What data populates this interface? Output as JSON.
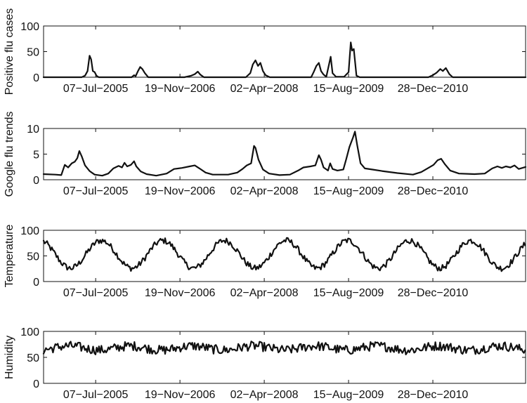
{
  "chart_data": [
    {
      "type": "line",
      "ylabel": "Positive flu cases",
      "ylim": [
        0,
        100
      ],
      "yticks": [
        0,
        50,
        100
      ],
      "xlim": [
        "2004-09-01",
        "2012-06-30"
      ],
      "xticks": [
        "2005-07-07",
        "2006-11-19",
        "2008-04-02",
        "2009-08-15",
        "2010-12-28"
      ],
      "xticklabels": [
        "07−Jul−2005",
        "19−Nov−2006",
        "02−Apr−2008",
        "15−Aug−2009",
        "28−Dec−2010"
      ],
      "grid": false,
      "series": [
        {
          "color": "#111111",
          "points": [
            [
              "2004-09-01",
              0
            ],
            [
              "2005-04-15",
              0
            ],
            [
              "2005-05-05",
              3
            ],
            [
              "2005-05-20",
              12
            ],
            [
              "2005-06-01",
              42
            ],
            [
              "2005-06-10",
              35
            ],
            [
              "2005-06-20",
              12
            ],
            [
              "2005-07-01",
              10
            ],
            [
              "2005-07-12",
              3
            ],
            [
              "2005-07-25",
              0
            ],
            [
              "2006-02-05",
              0
            ],
            [
              "2006-02-20",
              4
            ],
            [
              "2006-03-01",
              2
            ],
            [
              "2006-03-15",
              12
            ],
            [
              "2006-03-28",
              20
            ],
            [
              "2006-04-10",
              16
            ],
            [
              "2006-04-25",
              8
            ],
            [
              "2006-05-15",
              0
            ],
            [
              "2006-12-15",
              0
            ],
            [
              "2007-01-25",
              3
            ],
            [
              "2007-02-15",
              6
            ],
            [
              "2007-03-05",
              11
            ],
            [
              "2007-03-20",
              5
            ],
            [
              "2007-04-10",
              0
            ],
            [
              "2007-12-15",
              0
            ],
            [
              "2008-01-10",
              8
            ],
            [
              "2008-01-25",
              25
            ],
            [
              "2008-02-10",
              33
            ],
            [
              "2008-02-25",
              22
            ],
            [
              "2008-03-10",
              28
            ],
            [
              "2008-03-25",
              12
            ],
            [
              "2008-04-10",
              4
            ],
            [
              "2008-05-05",
              0
            ],
            [
              "2009-01-05",
              0
            ],
            [
              "2009-01-20",
              10
            ],
            [
              "2009-02-05",
              22
            ],
            [
              "2009-02-20",
              28
            ],
            [
              "2009-03-05",
              12
            ],
            [
              "2009-03-20",
              5
            ],
            [
              "2009-04-05",
              1
            ],
            [
              "2009-05-01",
              40
            ],
            [
              "2009-05-12",
              8
            ],
            [
              "2009-06-01",
              1
            ],
            [
              "2009-07-20",
              1
            ],
            [
              "2009-08-15",
              10
            ],
            [
              "2009-08-28",
              68
            ],
            [
              "2009-09-05",
              52
            ],
            [
              "2009-09-15",
              55
            ],
            [
              "2009-10-01",
              3
            ],
            [
              "2009-10-20",
              0
            ],
            [
              "2010-12-01",
              0
            ],
            [
              "2010-12-28",
              4
            ],
            [
              "2011-01-20",
              9
            ],
            [
              "2011-02-10",
              16
            ],
            [
              "2011-02-25",
              12
            ],
            [
              "2011-03-15",
              18
            ],
            [
              "2011-04-05",
              6
            ],
            [
              "2011-04-25",
              0
            ],
            [
              "2012-06-30",
              0
            ]
          ]
        }
      ]
    },
    {
      "type": "line",
      "ylabel": "Google flu trends",
      "ylim": [
        0,
        10
      ],
      "yticks": [
        0,
        5,
        10
      ],
      "xlim": [
        "2004-09-01",
        "2012-06-30"
      ],
      "xticks": [
        "2005-07-07",
        "2006-11-19",
        "2008-04-02",
        "2009-08-15",
        "2010-12-28"
      ],
      "xticklabels": [
        "07−Jul−2005",
        "19−Nov−2006",
        "02−Apr−2008",
        "15−Aug−2009",
        "28−Dec−2010"
      ],
      "grid": false,
      "series": [
        {
          "color": "#111111",
          "points": [
            [
              "2004-09-01",
              1.1
            ],
            [
              "2004-11-10",
              1.0
            ],
            [
              "2004-12-15",
              0.9
            ],
            [
              "2005-01-05",
              2.9
            ],
            [
              "2005-01-25",
              2.4
            ],
            [
              "2005-02-15",
              3.2
            ],
            [
              "2005-03-05",
              3.5
            ],
            [
              "2005-03-20",
              4.2
            ],
            [
              "2005-04-01",
              5.6
            ],
            [
              "2005-04-15",
              4.6
            ],
            [
              "2005-05-05",
              2.8
            ],
            [
              "2005-06-01",
              1.7
            ],
            [
              "2005-07-01",
              1.0
            ],
            [
              "2005-08-15",
              0.8
            ],
            [
              "2005-09-20",
              1.2
            ],
            [
              "2005-10-20",
              2.2
            ],
            [
              "2005-11-20",
              2.7
            ],
            [
              "2005-12-10",
              2.4
            ],
            [
              "2005-12-25",
              3.3
            ],
            [
              "2006-01-10",
              2.6
            ],
            [
              "2006-02-01",
              2.9
            ],
            [
              "2006-02-20",
              3.6
            ],
            [
              "2006-03-05",
              2.6
            ],
            [
              "2006-04-01",
              1.6
            ],
            [
              "2006-05-05",
              1.1
            ],
            [
              "2006-07-01",
              0.8
            ],
            [
              "2006-09-01",
              1.2
            ],
            [
              "2006-10-15",
              2.1
            ],
            [
              "2006-12-01",
              2.3
            ],
            [
              "2007-01-15",
              2.6
            ],
            [
              "2007-02-15",
              2.8
            ],
            [
              "2007-03-15",
              2.2
            ],
            [
              "2007-04-20",
              1.4
            ],
            [
              "2007-06-01",
              1.0
            ],
            [
              "2007-09-01",
              1.0
            ],
            [
              "2007-10-25",
              1.4
            ],
            [
              "2007-11-25",
              2.1
            ],
            [
              "2007-12-20",
              2.8
            ],
            [
              "2008-01-15",
              3.2
            ],
            [
              "2008-02-01",
              6.6
            ],
            [
              "2008-02-10",
              6.2
            ],
            [
              "2008-02-28",
              3.9
            ],
            [
              "2008-03-25",
              2.0
            ],
            [
              "2008-05-01",
              1.2
            ],
            [
              "2008-07-01",
              0.9
            ],
            [
              "2008-09-01",
              1.0
            ],
            [
              "2008-10-20",
              1.8
            ],
            [
              "2008-11-20",
              2.4
            ],
            [
              "2009-01-01",
              2.6
            ],
            [
              "2009-01-30",
              2.8
            ],
            [
              "2009-02-20",
              4.8
            ],
            [
              "2009-03-05",
              3.9
            ],
            [
              "2009-03-20",
              2.4
            ],
            [
              "2009-04-15",
              1.8
            ],
            [
              "2009-04-28",
              3.2
            ],
            [
              "2009-05-12",
              2.1
            ],
            [
              "2009-06-10",
              1.8
            ],
            [
              "2009-07-15",
              2.0
            ],
            [
              "2009-08-01",
              4.0
            ],
            [
              "2009-08-20",
              6.4
            ],
            [
              "2009-09-10",
              8.2
            ],
            [
              "2009-09-22",
              9.4
            ],
            [
              "2009-10-05",
              6.8
            ],
            [
              "2009-10-25",
              3.2
            ],
            [
              "2009-11-20",
              2.2
            ],
            [
              "2010-01-01",
              2.0
            ],
            [
              "2010-03-01",
              1.7
            ],
            [
              "2010-06-01",
              1.3
            ],
            [
              "2010-09-01",
              1.0
            ],
            [
              "2010-10-20",
              1.5
            ],
            [
              "2010-12-01",
              2.3
            ],
            [
              "2011-01-01",
              2.9
            ],
            [
              "2011-01-25",
              3.8
            ],
            [
              "2011-02-15",
              4.1
            ],
            [
              "2011-03-10",
              3.0
            ],
            [
              "2011-04-10",
              1.8
            ],
            [
              "2011-06-01",
              1.2
            ],
            [
              "2011-09-01",
              1.1
            ],
            [
              "2011-11-01",
              1.2
            ],
            [
              "2011-12-15",
              2.2
            ],
            [
              "2012-01-15",
              2.6
            ],
            [
              "2012-02-10",
              2.3
            ],
            [
              "2012-03-05",
              2.6
            ],
            [
              "2012-04-01",
              2.4
            ],
            [
              "2012-04-25",
              2.8
            ],
            [
              "2012-05-20",
              2.1
            ],
            [
              "2012-06-30",
              2.5
            ]
          ]
        }
      ]
    },
    {
      "type": "line",
      "ylabel": "Temperature",
      "ylim": [
        0,
        100
      ],
      "yticks": [
        0,
        50,
        100
      ],
      "xlim": [
        "2004-09-01",
        "2012-06-30"
      ],
      "xticks": [
        "2005-07-07",
        "2006-11-19",
        "2008-04-02",
        "2009-08-15",
        "2010-12-28"
      ],
      "xticklabels": [
        "07−Jul−2005",
        "19−Nov−2006",
        "02−Apr−2008",
        "15−Aug−2009",
        "28−Dec−2010"
      ],
      "grid": false,
      "series": [
        {
          "color": "#111111",
          "seasonal": {
            "start": "2004-09-01",
            "end": "2012-06-30",
            "step_days": 7,
            "mean": 53,
            "amplitude": 27,
            "peak_month": 7.3,
            "noise": 6
          }
        }
      ]
    },
    {
      "type": "line",
      "ylabel": "Humidity",
      "ylim": [
        0,
        100
      ],
      "yticks": [
        0,
        50,
        100
      ],
      "xlim": [
        "2004-09-01",
        "2012-06-30"
      ],
      "xticks": [
        "2005-07-07",
        "2006-11-19",
        "2008-04-02",
        "2009-08-15",
        "2010-12-28"
      ],
      "xticklabels": [
        "07−Jul−2005",
        "19−Nov−2006",
        "02−Apr−2008",
        "15−Aug−2009",
        "28−Dec−2010"
      ],
      "grid": false,
      "series": [
        {
          "color": "#111111",
          "seasonal": {
            "start": "2004-09-01",
            "end": "2012-06-30",
            "step_days": 7,
            "mean": 68,
            "amplitude": 4,
            "peak_month": 1.0,
            "noise": 9
          }
        }
      ]
    }
  ]
}
